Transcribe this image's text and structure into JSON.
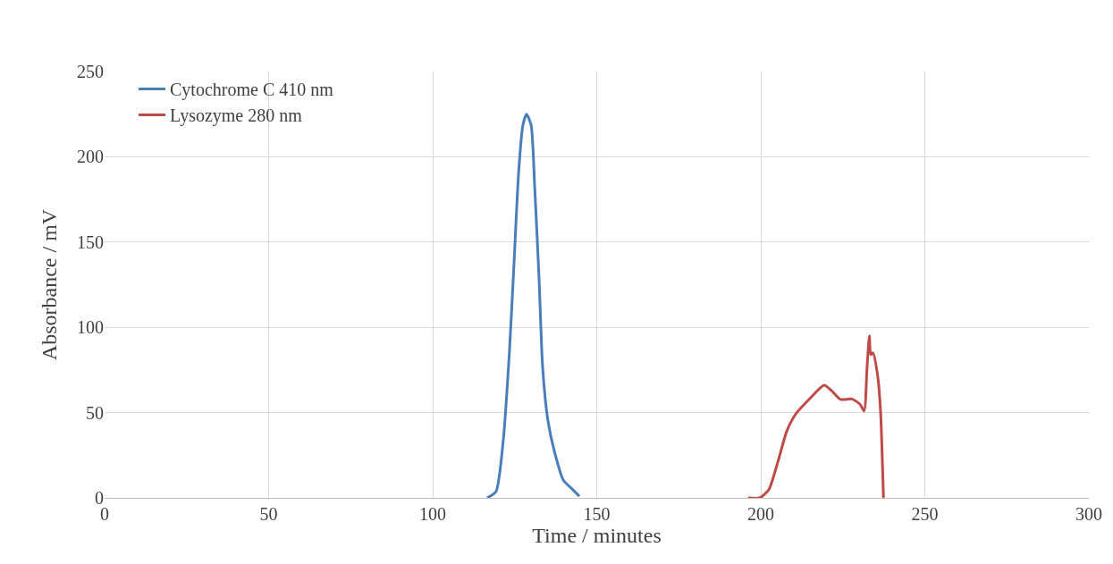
{
  "chart_data": {
    "type": "line",
    "xlabel": "Time / minutes",
    "ylabel": "Absorbance / mV",
    "xlim": [
      0,
      300
    ],
    "xticks": [
      0,
      50,
      100,
      150,
      200,
      250,
      300
    ],
    "ylim": [
      0,
      250
    ],
    "yticks": [
      0,
      50,
      100,
      150,
      200,
      250
    ],
    "grid": true,
    "legend": "top left",
    "marker": "none",
    "line_style": "solid",
    "series": [
      {
        "name": "Cytochrome C 410 nm",
        "color": "#4a7ebb",
        "x": [
          116.6,
          119.3,
          121.5,
          123.4,
          124.8,
          126.2,
          127.5,
          128.6,
          130,
          131.1,
          132.4,
          133.5,
          135.1,
          137,
          139.8,
          142.5,
          144.7
        ],
        "values": [
          0,
          3.7,
          33.5,
          86,
          138,
          191,
          218.6,
          225,
          218.6,
          182,
          129.5,
          77,
          45.6,
          28,
          10.5,
          5.2,
          1
        ]
      },
      {
        "name": "Lysozyme 280 nm",
        "color": "#be4b48",
        "x": [
          196.1,
          199.7,
          202.5,
          205.2,
          207.9,
          210.6,
          215.2,
          219.3,
          221.5,
          224.3,
          227.8,
          230.2,
          231.5,
          232.4,
          233.1,
          233.5,
          234.2,
          235.6,
          236.5,
          237.4
        ],
        "values": [
          0,
          0,
          5,
          21,
          39,
          49,
          58.7,
          66,
          63,
          57.7,
          58,
          55,
          51,
          77,
          95,
          84,
          85,
          72,
          51,
          0
        ]
      }
    ]
  }
}
